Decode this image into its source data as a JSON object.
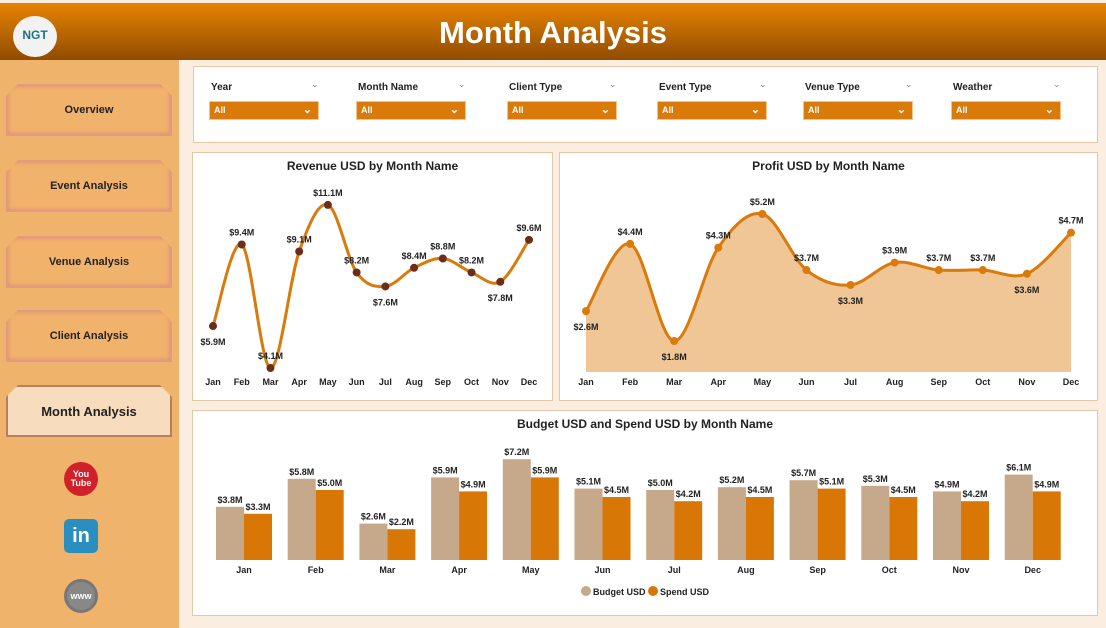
{
  "header": {
    "title": "Month Analysis",
    "logo_text": "NGT"
  },
  "sidebar": {
    "items": [
      {
        "label": "Overview"
      },
      {
        "label": "Event Analysis"
      },
      {
        "label": "Venue Analysis"
      },
      {
        "label": "Client Analysis"
      },
      {
        "label": "Month Analysis",
        "active": true
      }
    ],
    "social": [
      {
        "icon": "youtube-icon",
        "label": "You Tube"
      },
      {
        "icon": "linkedin-icon",
        "label": "in"
      },
      {
        "icon": "globe-icon",
        "label": "www"
      }
    ]
  },
  "filters": [
    {
      "label": "Year",
      "value": "All"
    },
    {
      "label": "Month Name",
      "value": "All"
    },
    {
      "label": "Client Type",
      "value": "All"
    },
    {
      "label": "Event Type",
      "value": "All"
    },
    {
      "label": "Venue Type",
      "value": "All"
    },
    {
      "label": "Weather",
      "value": "All"
    }
  ],
  "colors": {
    "accent": "#d97a0b",
    "header_dark": "#8f4c00",
    "sidebar": "#f0b36b",
    "budget": "#c6a98a",
    "spend": "#d97706",
    "revenue_line": "#d97a0b",
    "revenue_marker": "#6b2d1a",
    "profit_fill": "#f0c696"
  },
  "chart_data": [
    {
      "type": "line",
      "title": "Revenue USD by Month Name",
      "categories": [
        "Jan",
        "Feb",
        "Mar",
        "Apr",
        "May",
        "Jun",
        "Jul",
        "Aug",
        "Sep",
        "Oct",
        "Nov",
        "Dec"
      ],
      "values": [
        5.9,
        9.4,
        4.1,
        9.1,
        11.1,
        8.2,
        7.6,
        8.4,
        8.8,
        8.2,
        7.8,
        9.6
      ],
      "labels": [
        "$5.9M",
        "$9.4M",
        "$4.1M",
        "$9.1M",
        "$11.1M",
        "$8.2M",
        "$7.6M",
        "$8.4M",
        "$8.8M",
        "$8.2M",
        "$7.8M",
        "$9.6M"
      ],
      "unit": "USD millions",
      "smooth": true,
      "grid": false
    },
    {
      "type": "area",
      "title": "Profit USD by Month Name",
      "categories": [
        "Jan",
        "Feb",
        "Mar",
        "Apr",
        "May",
        "Jun",
        "Jul",
        "Aug",
        "Sep",
        "Oct",
        "Nov",
        "Dec"
      ],
      "values": [
        2.6,
        4.4,
        1.8,
        4.3,
        5.2,
        3.7,
        3.3,
        3.9,
        3.7,
        3.7,
        3.6,
        4.7
      ],
      "labels": [
        "$2.6M",
        "$4.4M",
        "$1.8M",
        "$4.3M",
        "$5.2M",
        "$3.7M",
        "$3.3M",
        "$3.9M",
        "$3.7M",
        "$3.7M",
        "$3.6M",
        "$4.7M"
      ],
      "unit": "USD millions",
      "smooth": true,
      "grid": false
    },
    {
      "type": "bar",
      "title": "Budget USD and Spend USD by Month Name",
      "categories": [
        "Jan",
        "Feb",
        "Mar",
        "Apr",
        "May",
        "Jun",
        "Jul",
        "Aug",
        "Sep",
        "Oct",
        "Nov",
        "Dec"
      ],
      "series": [
        {
          "name": "Budget USD",
          "values": [
            3.8,
            5.8,
            2.6,
            5.9,
            7.2,
            5.1,
            5.0,
            5.2,
            5.7,
            5.3,
            4.9,
            6.1
          ],
          "labels": [
            "$3.8M",
            "$5.8M",
            "$2.6M",
            "$5.9M",
            "$7.2M",
            "$5.1M",
            "$5.0M",
            "$5.2M",
            "$5.7M",
            "$5.3M",
            "$4.9M",
            "$6.1M"
          ]
        },
        {
          "name": "Spend USD",
          "values": [
            3.3,
            5.0,
            2.2,
            4.9,
            5.9,
            4.5,
            4.2,
            4.5,
            5.1,
            4.5,
            4.2,
            4.9
          ],
          "labels": [
            "$3.3M",
            "$5.0M",
            "$2.2M",
            "$4.9M",
            "$5.9M",
            "$4.5M",
            "$4.2M",
            "$4.5M",
            "$5.1M",
            "$4.5M",
            "$4.2M",
            "$4.9M"
          ]
        }
      ],
      "legend": "bottom-center",
      "grid": false
    }
  ]
}
